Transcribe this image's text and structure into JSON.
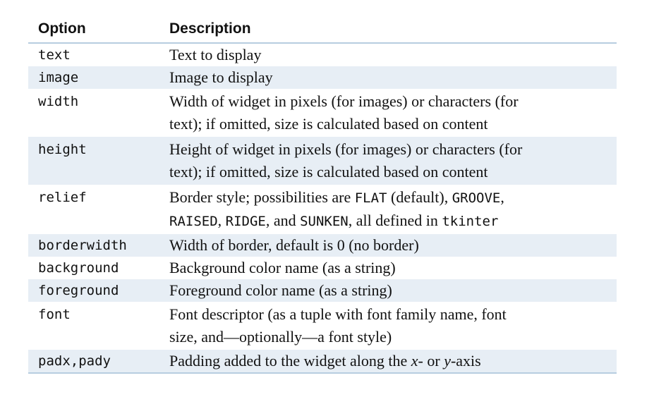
{
  "table": {
    "headers": {
      "option": "Option",
      "description": "Description"
    },
    "rows": [
      {
        "option": "text",
        "description": "Text to display"
      },
      {
        "option": "image",
        "description": "Image to display"
      },
      {
        "option": "width",
        "line1": "Width of widget in pixels (for images) or characters (for",
        "line2": "text); if omitted, size is calculated based on content"
      },
      {
        "option": "height",
        "line1": "Height of widget in pixels (for images) or characters (for",
        "line2": "text); if omitted, size is calculated based on content"
      },
      {
        "option": "relief",
        "l1a": "Border style; possibilities are ",
        "l1b": "FLAT",
        "l1c": " (default), ",
        "l1d": "GROOVE",
        "l1e": ",",
        "l2a": "RAISED",
        "l2b": ", ",
        "l2c": "RIDGE",
        "l2d": ", and ",
        "l2e": "SUNKEN",
        "l2f": ", all defined in ",
        "l2g": "tkinter"
      },
      {
        "option": "borderwidth",
        "description": "Width of border, default is 0 (no border)"
      },
      {
        "option": "background",
        "description": "Background color name (as a string)"
      },
      {
        "option": "foreground",
        "description": "Foreground color name (as a string)"
      },
      {
        "option": "font",
        "line1": "Font descriptor (as a tuple with font family name, font",
        "line2": "size, and—optionally—a font style)"
      },
      {
        "option": "padx,pady",
        "pa": "Padding added to the widget along the ",
        "pb": "x",
        "pc": "- or ",
        "pd": "y",
        "pe": "-axis"
      }
    ]
  },
  "colors": {
    "row_shade": "#e7eef5",
    "rule": "#b7cde0"
  }
}
